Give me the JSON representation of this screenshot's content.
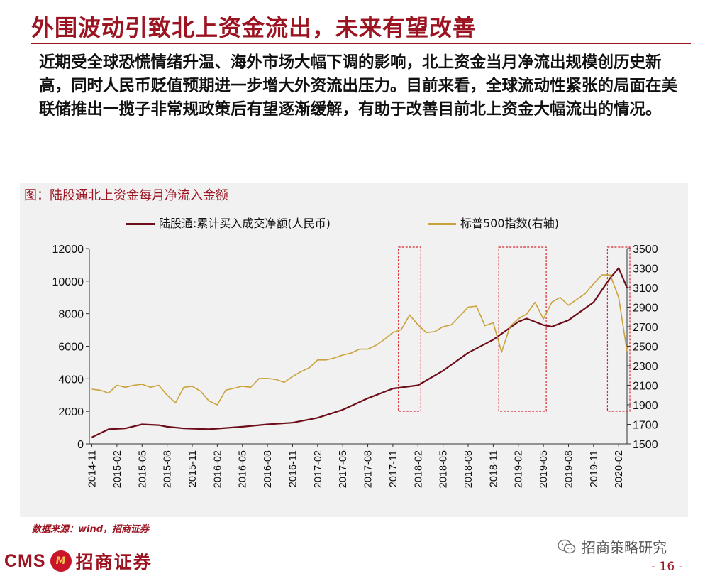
{
  "slide": {
    "title": "外围波动引致北上资金流出，未来有望改善",
    "body": "近期受全球恐慌情绪升温、海外市场大幅下调的影响，北上资金当月净流出规模创历史新高，同时人民币贬值预期进一步增大外资流出压力。目前来看，全球流动性紧张的局面在美联储推出一揽子非常规政策后有望逐渐缓解，有助于改善目前北上资金大幅流出的情况。",
    "source": "数据来源：wind，招商证券",
    "logo_cms": "CMS",
    "logo_badge": "M",
    "logo_name": "招商证券",
    "wechat_label": "招商策略研究",
    "page_number": "- 16 -"
  },
  "colors": {
    "brand": "#9c1421",
    "series_net_buy": "#6e0d1a",
    "series_sp500": "#c9a23a",
    "highlight_box": "#d9262b",
    "chart_bg": "#f1f1f1"
  },
  "chart_data": {
    "type": "line",
    "title": "图：陆股通北上资金每月净流入金额",
    "x_tick_labels": [
      "2014-11",
      "2015-02",
      "2015-05",
      "2015-08",
      "2015-11",
      "2016-02",
      "2016-05",
      "2016-08",
      "2016-11",
      "2017-02",
      "2017-05",
      "2017-08",
      "2017-11",
      "2018-02",
      "2018-05",
      "2018-08",
      "2018-11",
      "2019-02",
      "2019-05",
      "2019-08",
      "2019-11",
      "2020-02"
    ],
    "x_range": [
      "2014-11",
      "2020-03"
    ],
    "y_left": {
      "ticks": [
        0,
        2000,
        4000,
        6000,
        8000,
        10000,
        12000
      ],
      "range": [
        0,
        12000
      ]
    },
    "y_right": {
      "ticks": [
        1500,
        1700,
        1900,
        2100,
        2300,
        2500,
        2700,
        2900,
        3100,
        3300,
        3500
      ],
      "range": [
        1500,
        3500
      ]
    },
    "grid": false,
    "legend_position": "top",
    "series": [
      {
        "name": "陆股通:累计买入成交净额(人民币)",
        "axis": "left",
        "x": [
          "2014-11",
          "2015-01",
          "2015-03",
          "2015-05",
          "2015-07",
          "2015-08",
          "2015-10",
          "2016-01",
          "2016-05",
          "2016-08",
          "2016-11",
          "2017-02",
          "2017-05",
          "2017-08",
          "2017-11",
          "2018-02",
          "2018-05",
          "2018-08",
          "2018-11",
          "2019-02",
          "2019-03",
          "2019-05",
          "2019-06",
          "2019-08",
          "2019-11",
          "2020-01",
          "2020-02",
          "2020-03"
        ],
        "values": [
          400,
          900,
          950,
          1200,
          1150,
          1050,
          950,
          900,
          1050,
          1200,
          1300,
          1600,
          2100,
          2800,
          3400,
          3600,
          4500,
          5600,
          6400,
          7500,
          7700,
          7300,
          7200,
          7600,
          8700,
          10200,
          10800,
          9600
        ]
      },
      {
        "name": "标普500指数(右轴)",
        "axis": "right",
        "x": [
          "2014-11",
          "2014-12",
          "2015-01",
          "2015-02",
          "2015-03",
          "2015-04",
          "2015-05",
          "2015-06",
          "2015-07",
          "2015-08",
          "2015-09",
          "2015-10",
          "2015-11",
          "2015-12",
          "2016-01",
          "2016-02",
          "2016-03",
          "2016-04",
          "2016-05",
          "2016-06",
          "2016-07",
          "2016-08",
          "2016-09",
          "2016-10",
          "2016-11",
          "2016-12",
          "2017-01",
          "2017-02",
          "2017-03",
          "2017-04",
          "2017-05",
          "2017-06",
          "2017-07",
          "2017-08",
          "2017-09",
          "2017-10",
          "2017-11",
          "2017-12",
          "2018-01",
          "2018-02",
          "2018-03",
          "2018-04",
          "2018-05",
          "2018-06",
          "2018-07",
          "2018-08",
          "2018-09",
          "2018-10",
          "2018-11",
          "2018-12",
          "2019-01",
          "2019-02",
          "2019-03",
          "2019-04",
          "2019-05",
          "2019-06",
          "2019-07",
          "2019-08",
          "2019-09",
          "2019-10",
          "2019-11",
          "2019-12",
          "2020-01",
          "2020-02",
          "2020-03"
        ],
        "values": [
          2060,
          2050,
          2020,
          2100,
          2080,
          2100,
          2110,
          2080,
          2100,
          2000,
          1920,
          2080,
          2090,
          2040,
          1940,
          1900,
          2050,
          2070,
          2090,
          2080,
          2170,
          2170,
          2160,
          2130,
          2190,
          2240,
          2280,
          2360,
          2360,
          2380,
          2410,
          2430,
          2470,
          2470,
          2510,
          2570,
          2640,
          2670,
          2820,
          2720,
          2640,
          2650,
          2700,
          2720,
          2810,
          2900,
          2910,
          2710,
          2740,
          2440,
          2700,
          2780,
          2830,
          2950,
          2780,
          2950,
          3000,
          2920,
          2980,
          3040,
          3140,
          3230,
          3230,
          3000,
          2450
        ]
      }
    ],
    "highlight_periods": [
      {
        "from": "2017-12",
        "to": "2018-02"
      },
      {
        "from": "2018-12",
        "to": "2019-05"
      },
      {
        "from": "2020-01",
        "to": "2020-03"
      }
    ]
  }
}
